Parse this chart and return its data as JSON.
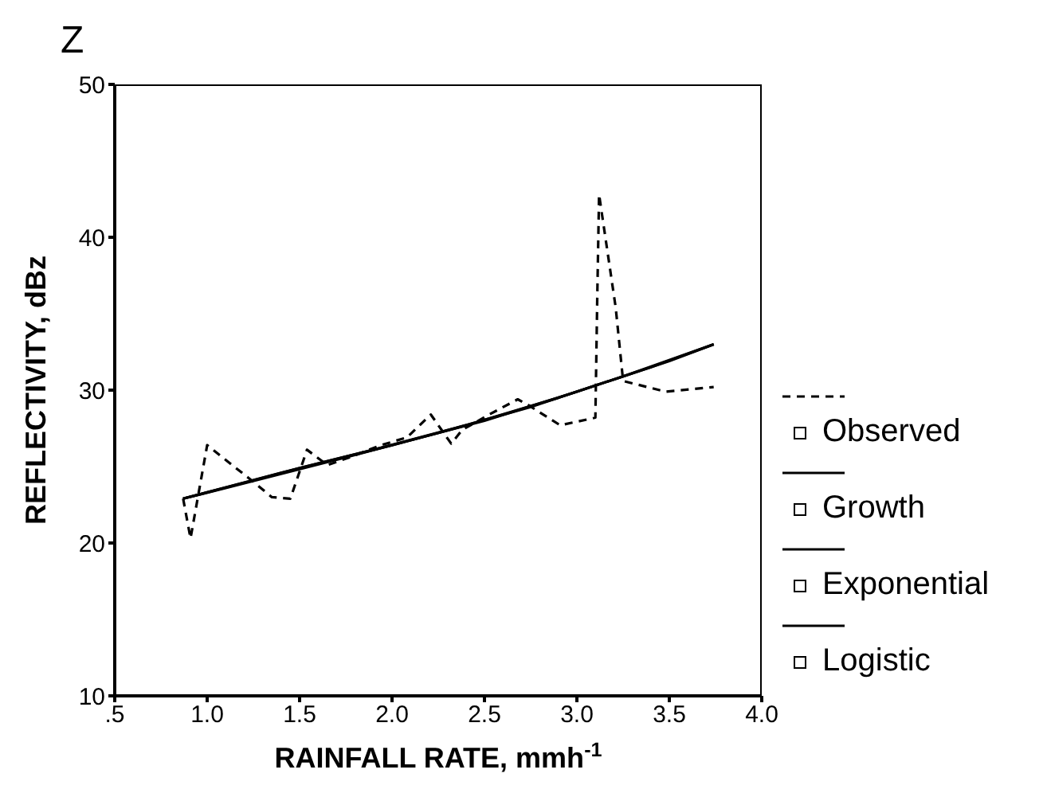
{
  "chart_data": {
    "type": "line",
    "title": "Z",
    "xlabel": "RAINFALL RATE, mmh$^{-1}$",
    "ylabel": "REFLECTIVITY, dBz",
    "xlim": [
      0.5,
      4.0
    ],
    "xticks": [
      {
        "value": 0.5,
        "label": ".5"
      },
      {
        "value": 1,
        "label": "1.0"
      },
      {
        "value": 1.5,
        "label": "1.5"
      },
      {
        "value": 2,
        "label": "2.0"
      },
      {
        "value": 2.5,
        "label": "2.5"
      },
      {
        "value": 3,
        "label": "3.0"
      },
      {
        "value": 3.5,
        "label": "3.5"
      },
      {
        "value": 4,
        "label": "4.0"
      }
    ],
    "ylim": [
      10,
      50
    ],
    "yticks": [
      10,
      20,
      30,
      40,
      50
    ],
    "grid": false,
    "legend": "right",
    "series": [
      {
        "name": "Observed",
        "color": "#000000",
        "line_style": "dashed",
        "x": [
          0.87,
          0.91,
          1.0,
          1.25,
          1.35,
          1.45,
          1.54,
          1.65,
          1.77,
          1.94,
          2.08,
          2.21,
          2.32,
          2.38,
          2.51,
          2.68,
          2.74,
          2.91,
          3.1,
          3.11,
          3.12,
          3.21,
          3.25,
          3.48,
          3.74
        ],
        "values": [
          22.9,
          20.3,
          26.4,
          24.0,
          23.0,
          22.9,
          26.1,
          25.1,
          25.6,
          26.4,
          26.9,
          28.4,
          26.5,
          27.4,
          28.3,
          29.4,
          29.0,
          27.7,
          28.2,
          35.9,
          42.8,
          35.4,
          30.6,
          29.9,
          30.2
        ]
      },
      {
        "name": "Growth",
        "color": "#000000",
        "line_style": "solid",
        "x": [
          0.87,
          1.25,
          1.5,
          2.0,
          2.5,
          3.0,
          3.5,
          3.74
        ],
        "values": [
          22.9,
          24.1,
          24.9,
          26.4,
          28.0,
          29.9,
          31.9,
          33.0
        ]
      },
      {
        "name": "Exponential",
        "color": "#000000",
        "line_style": "solid",
        "x": [
          0.87,
          1.1,
          1.75,
          2.25,
          2.75,
          3.25,
          3.74
        ],
        "values": [
          22.9,
          23.6,
          25.6,
          27.2,
          28.9,
          30.9,
          33.0
        ]
      },
      {
        "name": "Logistic",
        "color": "#000000",
        "line_style": "solid",
        "x": [
          0.87,
          1.4,
          1.9,
          2.4,
          2.9,
          3.4,
          3.74
        ],
        "values": [
          22.9,
          24.6,
          26.1,
          27.7,
          29.5,
          31.5,
          33.0
        ]
      }
    ]
  }
}
